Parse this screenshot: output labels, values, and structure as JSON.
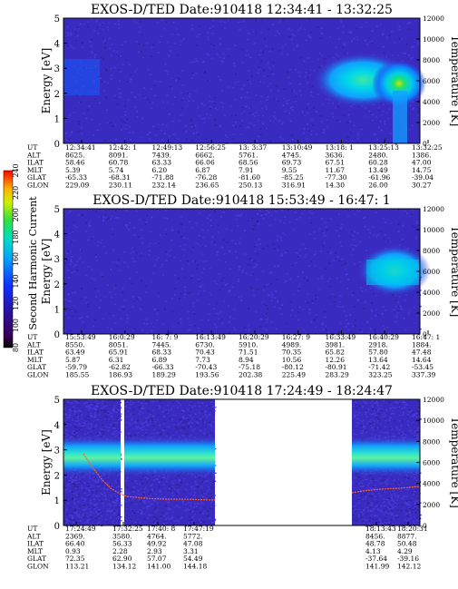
{
  "colorbar": {
    "label": "Second Harmonic Current",
    "ticks": [
      "80",
      "100",
      "120",
      "140",
      "160",
      "180",
      "200",
      "220",
      "240"
    ]
  },
  "chart_data": [
    {
      "type": "heatmap",
      "title": "EXOS-D/TED   Date:910418   12:34:41 - 13:32:25",
      "ylabel": "Energy [eV]",
      "ylabel_right": "Temperature [K]",
      "ylim": [
        0,
        5
      ],
      "ylim_right": [
        0,
        12000
      ],
      "yticks": [
        "0",
        "1",
        "2",
        "3",
        "4",
        "5"
      ],
      "yticks_right": [
        "0",
        "2000",
        "4000",
        "6000",
        "8000",
        "10000",
        "12000"
      ],
      "rows": [
        {
          "label": "UT",
          "values": [
            "12:34:41",
            "12:42: 1",
            "12:49:13",
            "12:56:25",
            "13: 3:37",
            "13:10:49",
            "13:18: 1",
            "13:25:13",
            "13:32:25"
          ]
        },
        {
          "label": "ALT",
          "values": [
            "8625.",
            "8091.",
            "7439.",
            "6662.",
            "5761.",
            "4745.",
            "3636.",
            "2480.",
            "1386."
          ]
        },
        {
          "label": "ILAT",
          "values": [
            "58.46",
            "60.78",
            "63.33",
            "66.06",
            "68.56",
            "69.73",
            "67.51",
            "60.28",
            "47.00"
          ]
        },
        {
          "label": "MLT",
          "values": [
            "5.39",
            "5.74",
            "6.20",
            "6.87",
            "7.91",
            "9.55",
            "11.67",
            "13.49",
            "14.75"
          ]
        },
        {
          "label": "GLAT",
          "values": [
            "-65.33",
            "-68.31",
            "-71.88",
            "-76.28",
            "-81.60",
            "-85.25",
            "-77.30",
            "-61.96",
            "-39.04"
          ]
        },
        {
          "label": "GLON",
          "values": [
            "229.09",
            "230.11",
            "232.14",
            "236.65",
            "250.13",
            "316.91",
            "14.30",
            "26.00",
            "30.27"
          ]
        }
      ]
    },
    {
      "type": "heatmap",
      "title": "EXOS-D/TED   Date:910418   15:53:49 - 16:47: 1",
      "ylabel": "Energy [eV]",
      "ylabel_right": "Temperature [K]",
      "ylim": [
        0,
        5
      ],
      "ylim_right": [
        0,
        12000
      ],
      "yticks": [
        "0",
        "1",
        "2",
        "3",
        "4",
        "5"
      ],
      "yticks_right": [
        "0",
        "2000",
        "4000",
        "6000",
        "8000",
        "10000",
        "12000"
      ],
      "rows": [
        {
          "label": "UT",
          "values": [
            "15:53:49",
            "16:0:29",
            "16: 7: 9",
            "16:13:49",
            "16:20:29",
            "16:27: 9",
            "16:33:49",
            "16:40:29",
            "16:47: 1"
          ]
        },
        {
          "label": "ALT",
          "values": [
            "8550.",
            "8051.",
            "7445.",
            "6730.",
            "5910.",
            "4989.",
            "3981.",
            "2918.",
            "1884."
          ]
        },
        {
          "label": "ILAT",
          "values": [
            "63.49",
            "65.91",
            "68.33",
            "70.43",
            "71.51",
            "70.35",
            "65.82",
            "57.80",
            "47.48"
          ]
        },
        {
          "label": "MLT",
          "values": [
            "5.87",
            "6.31",
            "6.89",
            "7.73",
            "8.94",
            "10.56",
            "12.26",
            "13.64",
            "14.64"
          ]
        },
        {
          "label": "GLAT",
          "values": [
            "-59.79",
            "-62.82",
            "-66.33",
            "-70.43",
            "-75.18",
            "-80.12",
            "-80.91",
            "-71.42",
            "-53.45"
          ]
        },
        {
          "label": "GLON",
          "values": [
            "185.55",
            "186.93",
            "189.29",
            "193.56",
            "202.38",
            "225.49",
            "283.29",
            "323.25",
            "337.39"
          ]
        }
      ]
    },
    {
      "type": "heatmap",
      "title": "EXOS-D/TED   Date:910418   17:24:49 - 18:24:47",
      "ylabel": "Energy [eV]",
      "ylabel_right": "Temperature [K]",
      "ylim": [
        0,
        5
      ],
      "ylim_right": [
        0,
        12000
      ],
      "yticks": [
        "0",
        "1",
        "2",
        "3",
        "4",
        "5"
      ],
      "yticks_right": [
        "0",
        "2000",
        "4000",
        "6000",
        "8000",
        "10000",
        "12000"
      ],
      "rows": [
        {
          "label": "UT",
          "values": [
            "17:24:49",
            "17:32:25",
            "17:40: 8",
            "17:47:19",
            "18:13:43",
            "18:20:31"
          ]
        },
        {
          "label": "ALT",
          "values": [
            "2369.",
            "3580.",
            "4764.",
            "5772.",
            "8456.",
            "8877."
          ]
        },
        {
          "label": "ILAT",
          "values": [
            "66.40",
            "56.33",
            "49.92",
            "47.08",
            "48.78",
            "50.48"
          ]
        },
        {
          "label": "MLT",
          "values": [
            "0.93",
            "2.28",
            "2.93",
            "3.31",
            "4.13",
            "4.29"
          ]
        },
        {
          "label": "GLAT",
          "values": [
            "72.35",
            "62.90",
            "57.07",
            "54.49",
            "-37.64",
            "-39.16"
          ]
        },
        {
          "label": "GLON",
          "values": [
            "113.21",
            "134.12",
            "141.00",
            "144.18",
            "141.99",
            "142.12"
          ]
        }
      ]
    }
  ]
}
